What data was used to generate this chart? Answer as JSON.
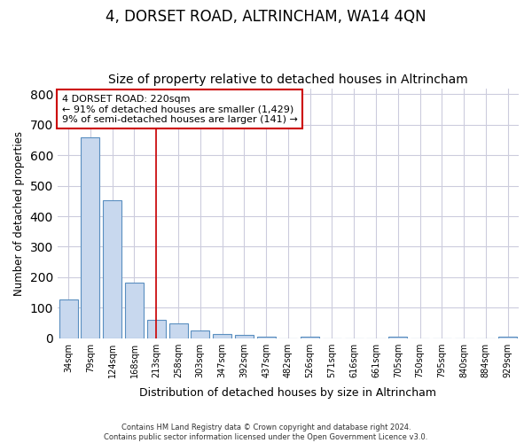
{
  "title": "4, DORSET ROAD, ALTRINCHAM, WA14 4QN",
  "subtitle": "Size of property relative to detached houses in Altrincham",
  "xlabel": "Distribution of detached houses by size in Altrincham",
  "ylabel": "Number of detached properties",
  "categories": [
    "34sqm",
    "79sqm",
    "124sqm",
    "168sqm",
    "213sqm",
    "258sqm",
    "303sqm",
    "347sqm",
    "392sqm",
    "437sqm",
    "482sqm",
    "526sqm",
    "571sqm",
    "616sqm",
    "661sqm",
    "705sqm",
    "750sqm",
    "795sqm",
    "840sqm",
    "884sqm",
    "929sqm"
  ],
  "values": [
    128,
    660,
    452,
    183,
    60,
    48,
    25,
    14,
    10,
    6,
    0,
    5,
    0,
    0,
    0,
    5,
    0,
    0,
    0,
    0,
    6
  ],
  "bar_color": "#c8d8ee",
  "bar_edge_color": "#5a8fc0",
  "vline_x": 4,
  "vline_color": "#cc0000",
  "annotation_lines": [
    "4 DORSET ROAD: 220sqm",
    "← 91% of detached houses are smaller (1,429)",
    "9% of semi-detached houses are larger (141) →"
  ],
  "annotation_box_facecolor": "#ffffff",
  "annotation_box_edgecolor": "#cc0000",
  "footer": "Contains HM Land Registry data © Crown copyright and database right 2024.\nContains public sector information licensed under the Open Government Licence v3.0.",
  "ylim": [
    0,
    820
  ],
  "background_color": "#ffffff",
  "plot_background": "#ffffff",
  "grid_color": "#ccccdd",
  "title_fontsize": 12,
  "subtitle_fontsize": 10,
  "annotation_fontsize": 8
}
